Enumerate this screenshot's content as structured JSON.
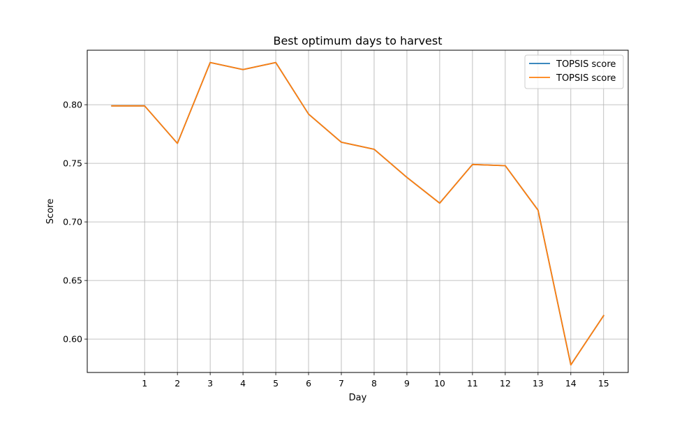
{
  "chart_data": {
    "type": "line",
    "title": "Best optimum days to harvest",
    "xlabel": "Day",
    "ylabel": "Score",
    "x_ticks": [
      1,
      2,
      3,
      4,
      5,
      6,
      7,
      8,
      9,
      10,
      11,
      12,
      13,
      14,
      15
    ],
    "y_ticks": [
      "0.60",
      "0.65",
      "0.70",
      "0.75",
      "0.80"
    ],
    "xlim": [
      -0.75,
      15.75
    ],
    "ylim": [
      0.5715,
      0.8465
    ],
    "grid": true,
    "legend_position": "upper right",
    "x": [
      0,
      1,
      2,
      3,
      4,
      5,
      6,
      7,
      8,
      9,
      10,
      11,
      12,
      13,
      14,
      15
    ],
    "series": [
      {
        "name": "TOPSIS score",
        "color": "#1f77b4",
        "values": [
          0.799,
          0.799,
          0.767,
          0.836,
          0.83,
          0.836,
          0.792,
          0.768,
          0.762,
          0.738,
          0.716,
          0.749,
          0.748,
          0.71,
          0.578,
          0.62
        ]
      },
      {
        "name": "TOPSIS score",
        "color": "#ff7f0e",
        "values": [
          0.799,
          0.799,
          0.767,
          0.836,
          0.83,
          0.836,
          0.792,
          0.768,
          0.762,
          0.738,
          0.716,
          0.749,
          0.748,
          0.71,
          0.578,
          0.62
        ]
      }
    ]
  }
}
